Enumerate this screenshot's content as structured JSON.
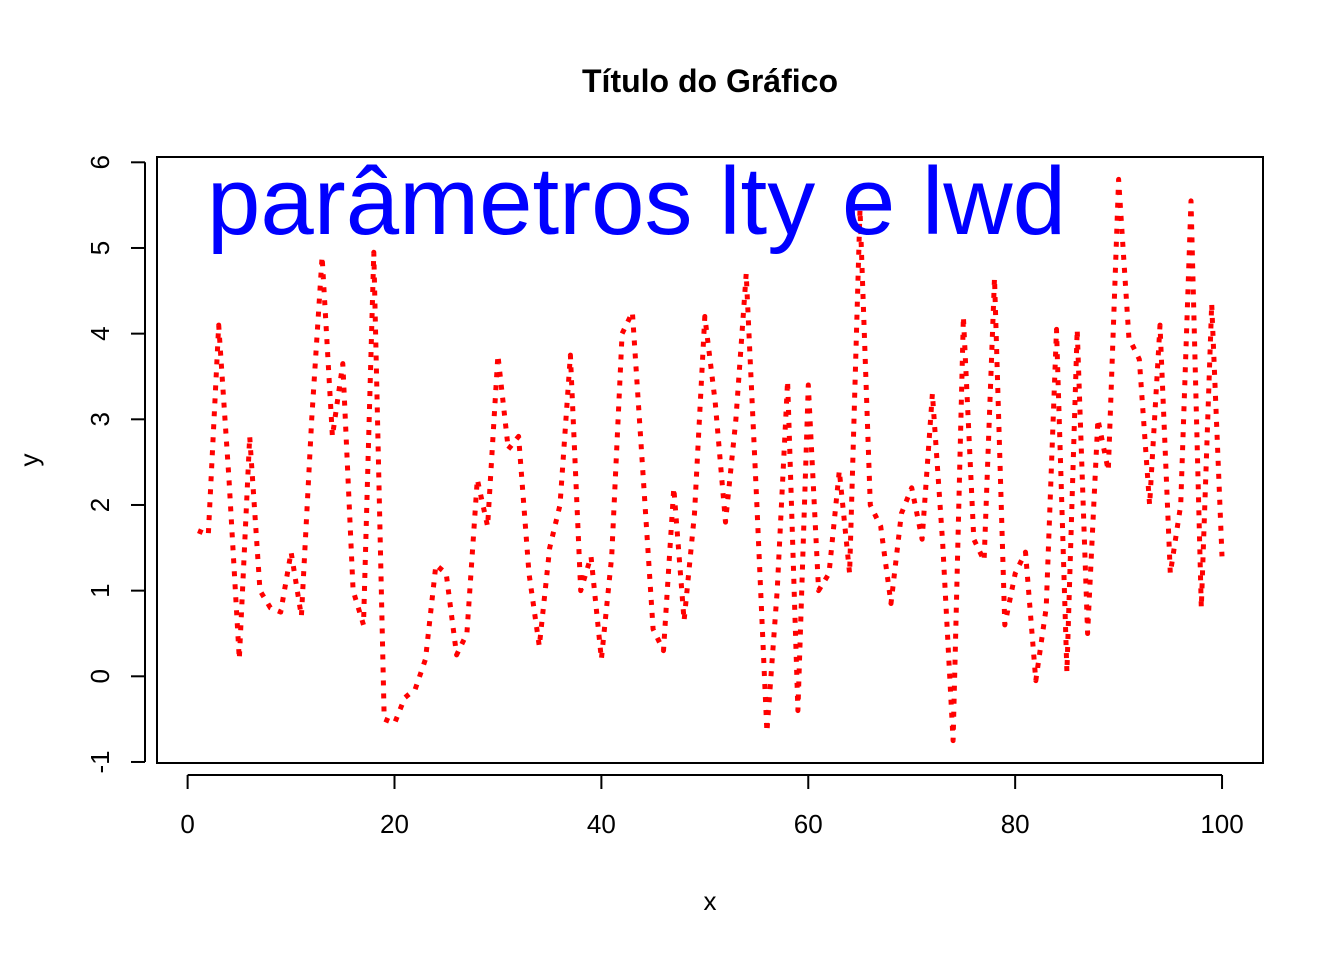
{
  "chart_data": {
    "type": "line",
    "title": "Título do Gráfico",
    "xlabel": "x",
    "ylabel": "y",
    "xlim": [
      1,
      100
    ],
    "ylim": [
      -0.75,
      5.8
    ],
    "x_ticks": [
      0,
      20,
      40,
      60,
      80,
      100
    ],
    "y_ticks": [
      -1,
      0,
      1,
      2,
      3,
      4,
      5,
      6
    ],
    "grid": false,
    "line_style": "dotted",
    "line_color": "#ff0000",
    "annotation": {
      "text": "parâmetros lty e lwd",
      "color": "#0000ff"
    },
    "x": [
      1,
      2,
      3,
      4,
      5,
      6,
      7,
      8,
      9,
      10,
      11,
      12,
      13,
      14,
      15,
      16,
      17,
      18,
      19,
      20,
      21,
      22,
      23,
      24,
      25,
      26,
      27,
      28,
      29,
      30,
      31,
      32,
      33,
      34,
      35,
      36,
      37,
      38,
      39,
      40,
      41,
      42,
      43,
      44,
      45,
      46,
      47,
      48,
      49,
      50,
      51,
      52,
      53,
      54,
      55,
      56,
      57,
      58,
      59,
      60,
      61,
      62,
      63,
      64,
      65,
      66,
      67,
      68,
      69,
      70,
      71,
      72,
      73,
      74,
      75,
      76,
      77,
      78,
      79,
      80,
      81,
      82,
      83,
      84,
      85,
      86,
      87,
      88,
      89,
      90,
      91,
      92,
      93,
      94,
      95,
      96,
      97,
      98,
      99,
      100
    ],
    "y": [
      1.7,
      1.65,
      4.1,
      2.3,
      0.2,
      2.8,
      1.0,
      0.8,
      0.75,
      1.45,
      0.7,
      3.0,
      4.9,
      2.8,
      3.65,
      1.0,
      0.6,
      4.95,
      -0.5,
      -0.55,
      -0.25,
      -0.15,
      0.2,
      1.3,
      1.2,
      0.25,
      0.5,
      2.3,
      1.75,
      3.75,
      2.65,
      2.8,
      1.2,
      0.35,
      1.5,
      2.0,
      3.75,
      1.0,
      1.4,
      0.2,
      1.4,
      4.0,
      4.25,
      2.4,
      0.55,
      0.3,
      2.2,
      0.65,
      1.9,
      4.2,
      3.2,
      1.8,
      3.0,
      4.7,
      2.1,
      -0.65,
      1.0,
      3.45,
      -0.4,
      3.4,
      1.0,
      1.2,
      2.4,
      1.2,
      5.45,
      2.0,
      1.75,
      0.85,
      1.9,
      2.2,
      1.6,
      3.3,
      1.55,
      -0.75,
      4.2,
      1.6,
      1.35,
      4.65,
      0.6,
      1.2,
      1.45,
      -0.05,
      0.8,
      4.05,
      0.05,
      4.05,
      0.5,
      3.0,
      2.4,
      5.8,
      3.95,
      3.7,
      2.0,
      4.1,
      1.2,
      2.0,
      5.55,
      0.8,
      4.35,
      1.4
    ]
  }
}
